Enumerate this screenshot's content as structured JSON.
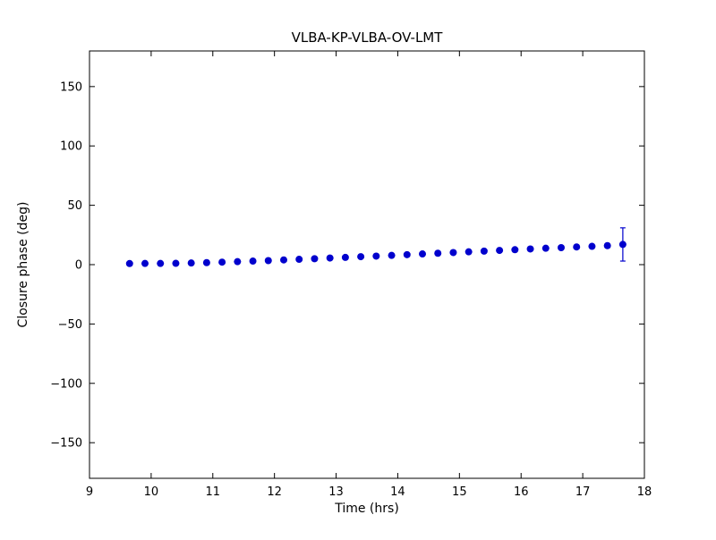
{
  "figure": {
    "background": "#ffffff"
  },
  "chart_data": {
    "type": "scatter",
    "title": "VLBA-KP-VLBA-OV-LMT",
    "xlabel": "Time (hrs)",
    "ylabel": "Closure phase (deg)",
    "xlim": [
      9,
      18
    ],
    "ylim": [
      -180,
      180
    ],
    "xticks": [
      9,
      10,
      11,
      12,
      13,
      14,
      15,
      16,
      17,
      18
    ],
    "yticks": [
      -150,
      -100,
      -50,
      0,
      50,
      100,
      150
    ],
    "grid": false,
    "legend": null,
    "marker_color": "#0000cd",
    "axis_color": "#000000",
    "series": [
      {
        "name": "closure-phase",
        "x": [
          9.65,
          9.9,
          10.15,
          10.4,
          10.65,
          10.9,
          11.15,
          11.4,
          11.65,
          11.9,
          12.15,
          12.4,
          12.65,
          12.9,
          13.15,
          13.4,
          13.65,
          13.9,
          14.15,
          14.4,
          14.65,
          14.9,
          15.15,
          15.4,
          15.65,
          15.9,
          16.15,
          16.4,
          16.65,
          16.9,
          17.15,
          17.4,
          17.65
        ],
        "y": [
          0.9,
          1.0,
          1.0,
          1.1,
          1.4,
          1.7,
          2.1,
          2.5,
          3.0,
          3.4,
          4.0,
          4.5,
          5.0,
          5.6,
          6.1,
          6.7,
          7.2,
          7.8,
          8.4,
          9.0,
          9.6,
          10.2,
          10.8,
          11.4,
          12.0,
          12.6,
          13.2,
          13.8,
          14.3,
          14.9,
          15.4,
          16.0,
          17.0
        ],
        "yerr": [
          1.2,
          1.2,
          1.2,
          1.2,
          1.2,
          1.2,
          1.2,
          1.2,
          1.2,
          1.2,
          1.2,
          1.2,
          1.2,
          1.2,
          1.2,
          1.2,
          1.2,
          1.2,
          1.2,
          1.2,
          1.2,
          1.2,
          1.2,
          1.2,
          1.2,
          1.2,
          1.2,
          1.2,
          1.2,
          1.2,
          1.2,
          1.2,
          14.0
        ]
      }
    ]
  }
}
